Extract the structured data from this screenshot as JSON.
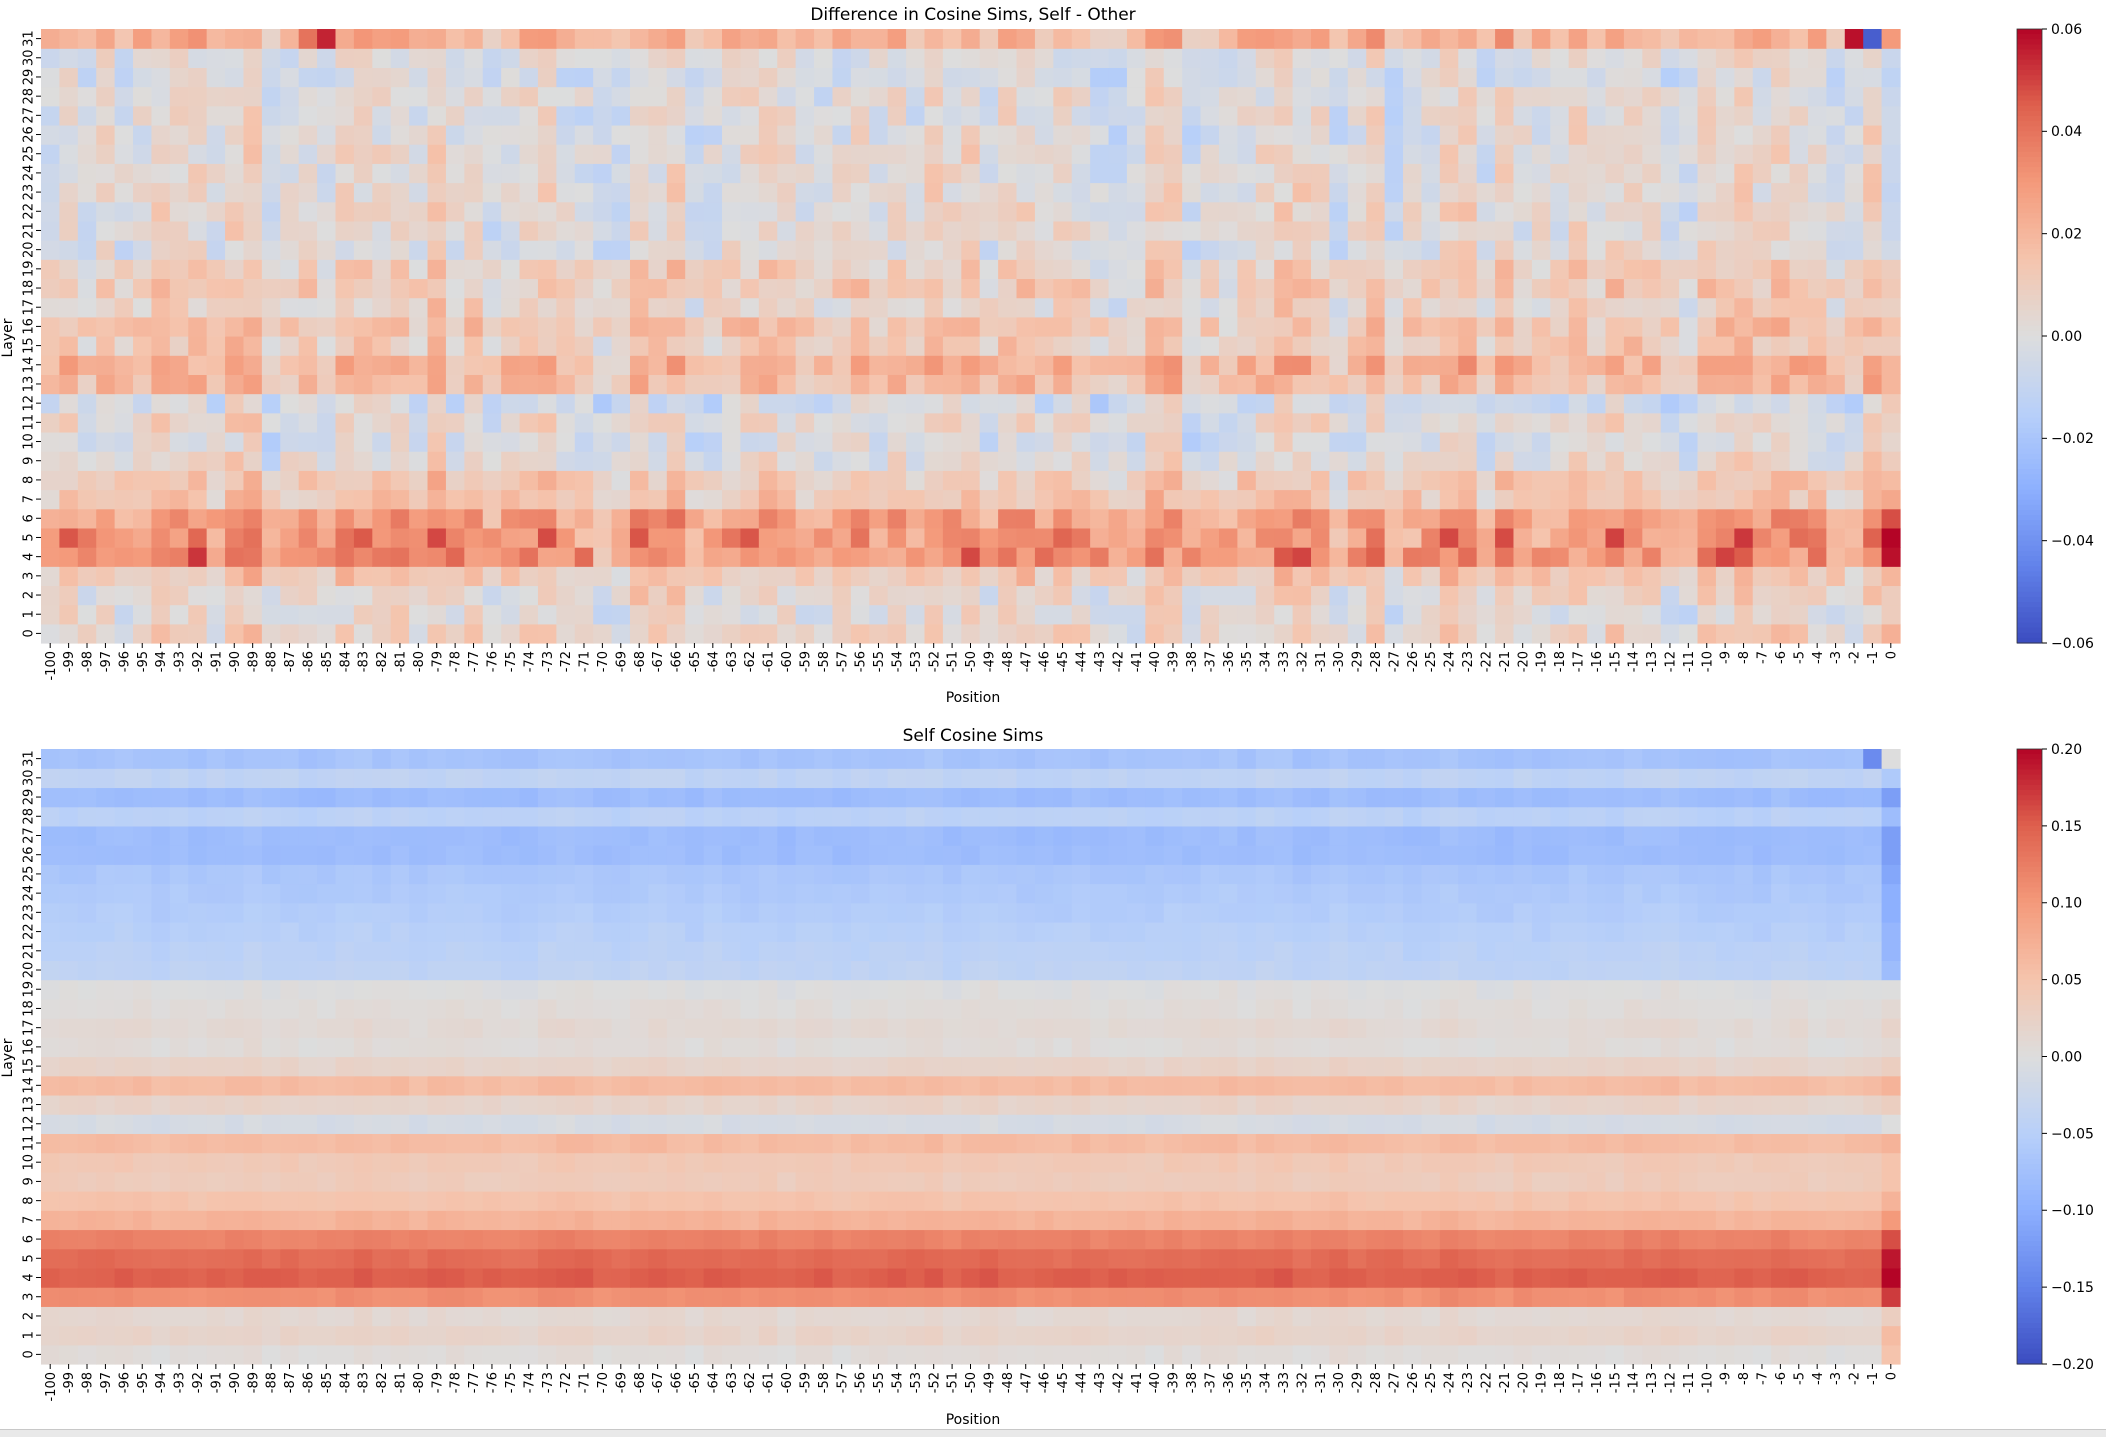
{
  "chart_data": [
    {
      "type": "heatmap",
      "title": "Difference in Cosine Sims, Self - Other",
      "xlabel": "Position",
      "ylabel": "Layer",
      "x_range": [
        -100,
        0
      ],
      "y_range": [
        0,
        31
      ],
      "colormap": "coolwarm",
      "vmin": -0.06,
      "vmax": 0.06,
      "colorbar_ticks": [
        "0.06",
        "0.04",
        "0.02",
        "0.00",
        "−0.02",
        "−0.04",
        "−0.06"
      ],
      "layer_profile": [
        0.006,
        0.002,
        0.004,
        0.012,
        0.032,
        0.031,
        0.026,
        0.012,
        0.011,
        0.002,
        -0.002,
        0.003,
        -0.004,
        0.016,
        0.019,
        0.01,
        0.013,
        0.006,
        0.01,
        0.008,
        0.0,
        0.001,
        0.002,
        0.002,
        0.001,
        0.002,
        0.0,
        0.0,
        0.001,
        -0.003,
        -0.001,
        0.02
      ],
      "position_column_0": [
        0.022,
        0.01,
        0.01,
        0.02,
        0.058,
        0.06,
        0.048,
        0.025,
        0.018,
        0.01,
        0.005,
        0.008,
        0.012,
        0.02,
        0.02,
        0.01,
        0.015,
        0.008,
        0.012,
        0.01,
        -0.005,
        -0.008,
        -0.008,
        -0.01,
        -0.008,
        -0.008,
        -0.006,
        -0.006,
        -0.008,
        -0.012,
        -0.008,
        0.03
      ],
      "notable_cells": [
        {
          "position": -2,
          "layer": 31,
          "value": 0.058
        },
        {
          "position": -1,
          "layer": 31,
          "value": -0.055
        },
        {
          "position": -85,
          "layer": 31,
          "value": 0.055
        },
        {
          "position": -86,
          "layer": 31,
          "value": 0.04
        },
        {
          "position": -92,
          "layer": 4,
          "value": 0.052
        },
        {
          "position": -9,
          "layer": 4,
          "value": 0.05
        }
      ]
    },
    {
      "type": "heatmap",
      "title": "Self Cosine Sims",
      "xlabel": "Position",
      "ylabel": "Layer",
      "x_range": [
        -100,
        0
      ],
      "y_range": [
        0,
        31
      ],
      "colormap": "coolwarm",
      "vmin": -0.2,
      "vmax": 0.2,
      "colorbar_ticks": [
        "0.20",
        "0.15",
        "0.10",
        "0.05",
        "0.00",
        "−0.05",
        "−0.10",
        "−0.15",
        "−0.20"
      ],
      "layer_profile": [
        0.005,
        0.02,
        0.012,
        0.11,
        0.15,
        0.14,
        0.12,
        0.07,
        0.05,
        0.035,
        0.04,
        0.06,
        -0.01,
        0.02,
        0.06,
        0.02,
        0.005,
        0.01,
        0.005,
        0.0,
        -0.04,
        -0.045,
        -0.05,
        -0.055,
        -0.06,
        -0.065,
        -0.08,
        -0.08,
        -0.045,
        -0.08,
        -0.04,
        -0.07
      ],
      "position_column_0": [
        0.05,
        0.06,
        0.03,
        0.17,
        0.2,
        0.19,
        0.16,
        0.1,
        0.07,
        0.05,
        0.05,
        0.07,
        0.0,
        0.03,
        0.07,
        0.03,
        0.01,
        0.02,
        0.01,
        0.0,
        -0.08,
        -0.09,
        -0.09,
        -0.1,
        -0.1,
        -0.11,
        -0.12,
        -0.12,
        -0.08,
        -0.12,
        -0.06,
        0.0
      ],
      "notable_cells": [
        {
          "position": -1,
          "layer": 31,
          "value": -0.14
        }
      ]
    }
  ]
}
